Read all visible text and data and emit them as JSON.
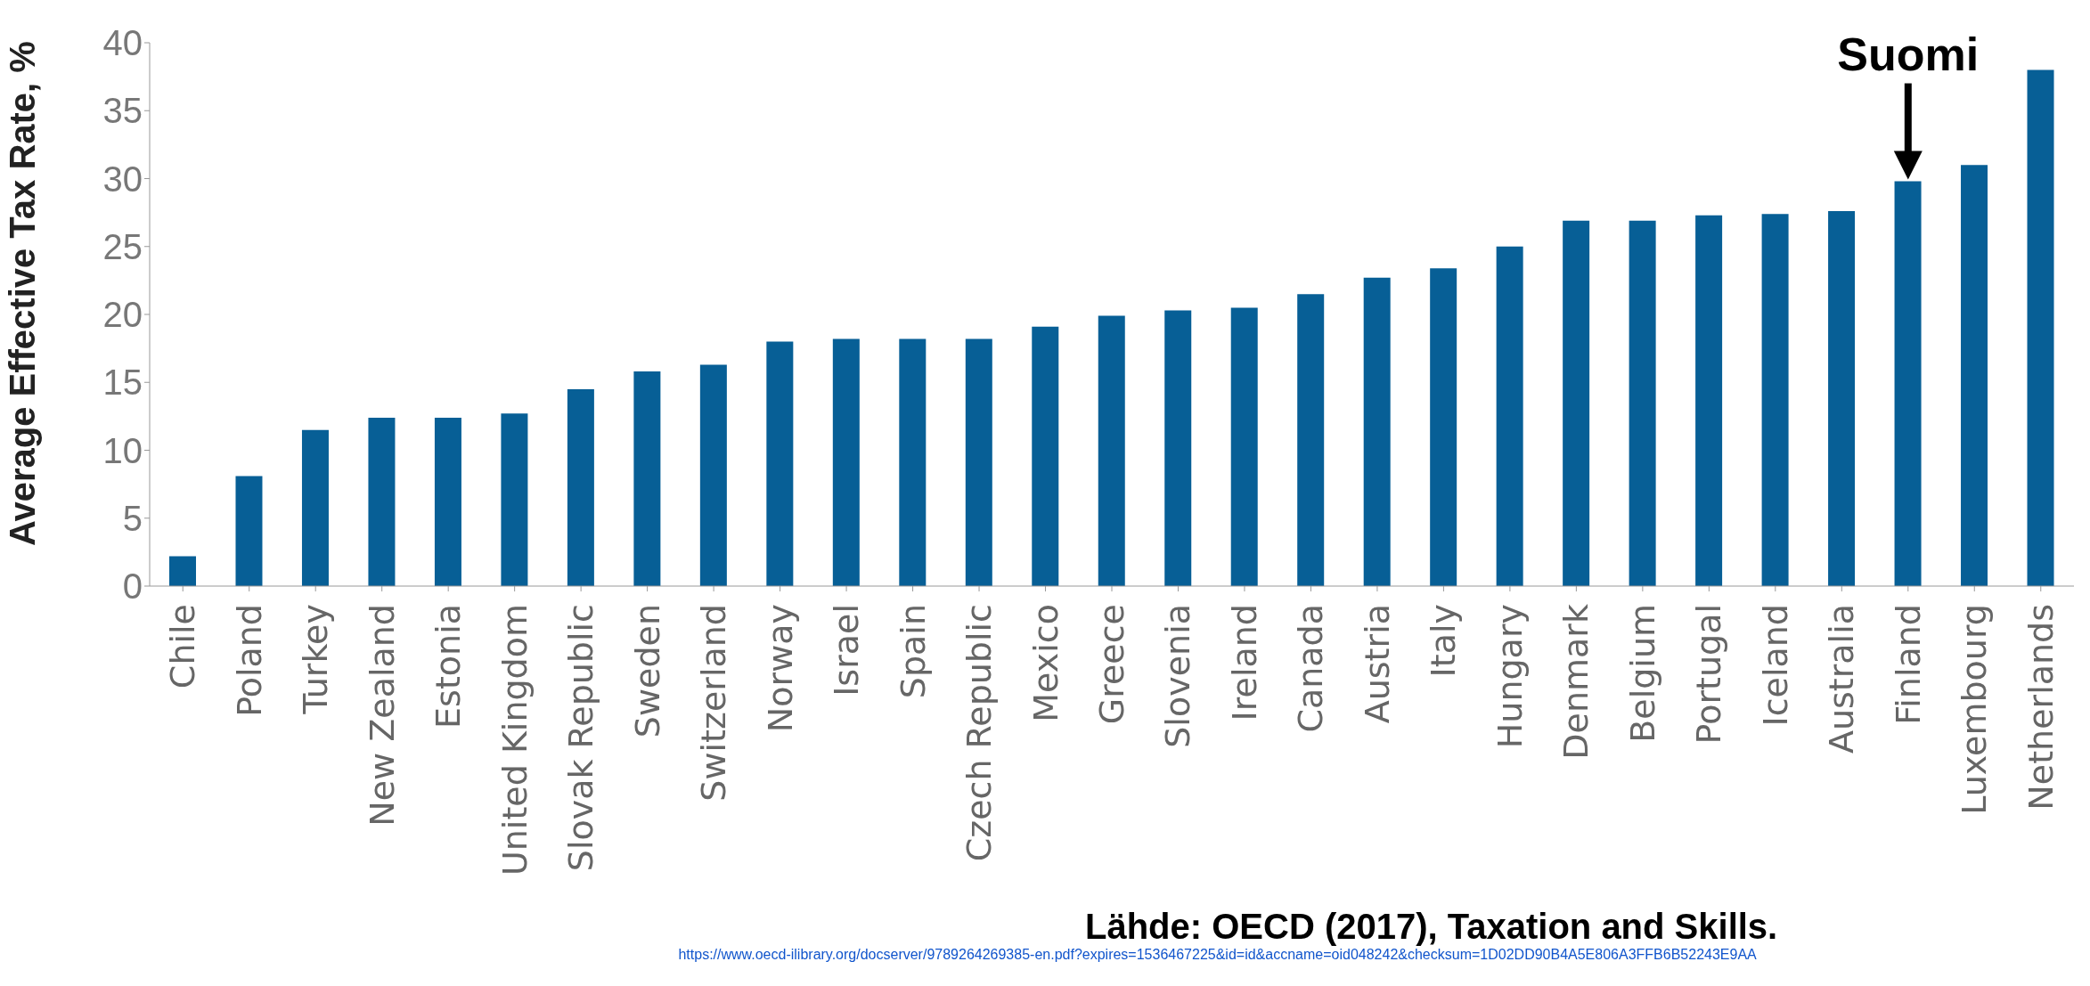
{
  "chart_data": {
    "type": "bar",
    "ylabel": "Average Effective Tax Rate, %",
    "categories": [
      "Chile",
      "Poland",
      "Turkey",
      "New Zealand",
      "Estonia",
      "United Kingdom",
      "Slovak Republic",
      "Sweden",
      "Switzerland",
      "Norway",
      "Israel",
      "Spain",
      "Czech Republic",
      "Mexico",
      "Greece",
      "Slovenia",
      "Ireland",
      "Canada",
      "Austria",
      "Italy",
      "Hungary",
      "Denmark",
      "Belgium",
      "Portugal",
      "Iceland",
      "Australia",
      "Finland",
      "Luxembourg",
      "Netherlands"
    ],
    "values": [
      2.2,
      8.1,
      11.5,
      12.4,
      12.4,
      12.7,
      14.5,
      15.8,
      16.3,
      18.0,
      18.2,
      18.2,
      18.2,
      19.1,
      19.9,
      20.3,
      20.5,
      21.5,
      22.7,
      23.4,
      25.0,
      26.9,
      26.9,
      27.3,
      27.4,
      27.6,
      29.8,
      31.0,
      38.0
    ],
    "color": "#075f96",
    "ylim": [
      0,
      40
    ],
    "yticks": [
      0,
      5,
      10,
      15,
      20,
      25,
      30,
      35,
      40
    ],
    "grid": false,
    "legend": false,
    "annotations": [
      {
        "text": "Suomi",
        "x": "Finland",
        "y": 29.8
      },
      "Lähde: OECD (2017), Taxation and Skills.",
      "https://www.oecd-ilibrary.org/docserver/9789264269385-en.pdf?expires=1536467225&id=id&accname=oid048242&checksum=1D02DD90B4A5E806A3FFB6B52243E9AA"
    ]
  }
}
